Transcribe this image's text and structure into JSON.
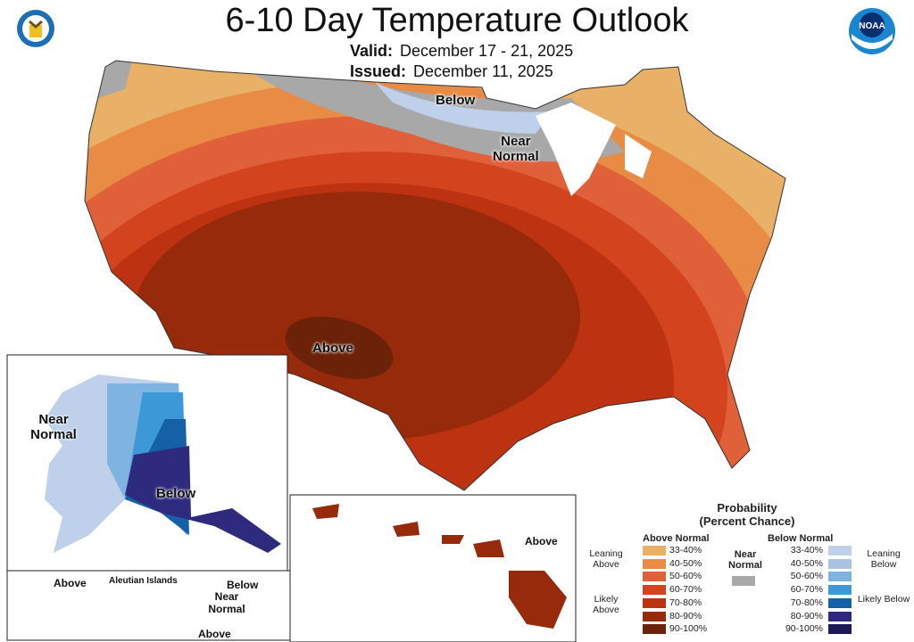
{
  "header": {
    "title": "6-10 Day Temperature Outlook",
    "valid_label": "Valid:",
    "valid_value": "December 17 - 21, 2025",
    "issued_label": "Issued:",
    "issued_value": "December 11, 2025"
  },
  "logos": {
    "left": "doc-seal-logo",
    "right": "noaa-logo",
    "right_text": "NOAA"
  },
  "map_labels": {
    "conus_below": "Below",
    "conus_near_normal": "Near\nNormal",
    "conus_above": "Above",
    "alaska_near_normal": "Near Normal",
    "alaska_below": "Below",
    "aleutian_title": "Aleutian Islands",
    "aleutian_above_left": "Above",
    "aleutian_below": "Below",
    "aleutian_near_normal": "Near Normal",
    "aleutian_above": "Above",
    "hawaii_above": "Above"
  },
  "legend": {
    "title": "Probability",
    "subtitle": "(Percent Chance)",
    "above_header": "Above Normal",
    "below_header": "Below Normal",
    "near_header": "Near Normal",
    "leaning_above": "Leaning Above",
    "likely_above": "Likely Above",
    "leaning_below": "Leaning Below",
    "likely_below": "Likely Below",
    "ranges": [
      "33-40%",
      "40-50%",
      "50-60%",
      "60-70%",
      "70-80%",
      "80-90%",
      "90-100%"
    ],
    "above_colors": [
      "#e9b067",
      "#e88b45",
      "#e0603a",
      "#d2431e",
      "#bd3210",
      "#962a0b",
      "#6b2208"
    ],
    "below_colors": [
      "#bfd0ea",
      "#a8c3e2",
      "#7fb3e0",
      "#3d98d8",
      "#1560a6",
      "#2e2a7e",
      "#1e1a55"
    ],
    "near_color": "#a8a8a8"
  }
}
